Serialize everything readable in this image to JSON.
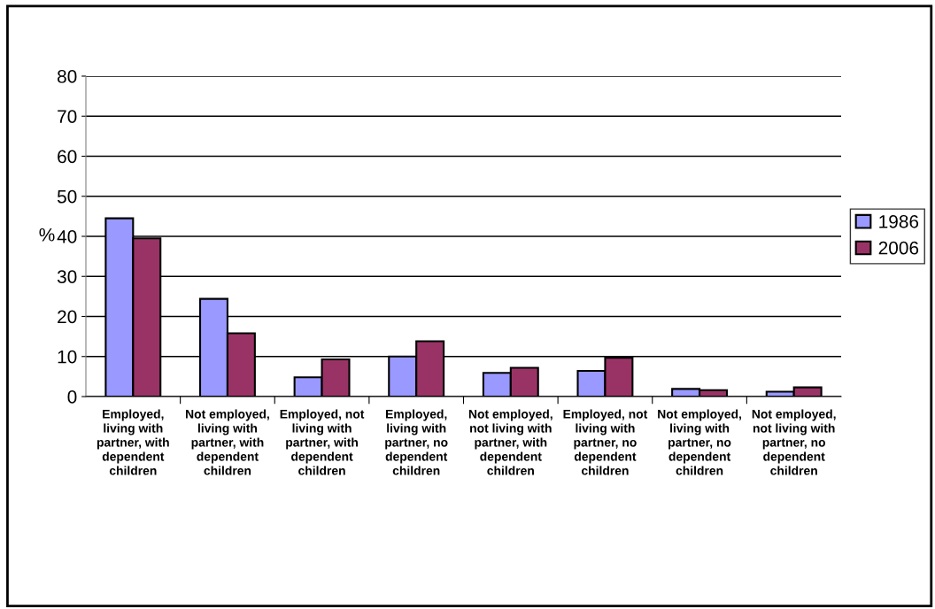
{
  "chart_data": {
    "type": "bar",
    "ylabel": "%",
    "categories": [
      "Employed, living with partner, with dependent children",
      "Not employed, living with partner, with dependent children",
      "Employed, not living with partner, with dependent children",
      "Employed, living with partner, no dependent children",
      "Not employed, not living with partner, with dependent children",
      "Employed, not living with partner, no dependent children",
      "Not employed, living with partner, no dependent children",
      "Not employed, not living with partner, no dependent children"
    ],
    "series": [
      {
        "name": "1986",
        "color": "#9999ff",
        "values": [
          44.5,
          24.4,
          4.8,
          10.0,
          5.9,
          6.4,
          1.9,
          1.2
        ]
      },
      {
        "name": "2006",
        "color": "#993366",
        "values": [
          39.5,
          15.8,
          9.3,
          13.8,
          7.2,
          9.7,
          1.6,
          2.3
        ]
      }
    ],
    "ylim": [
      0,
      80
    ],
    "yticks": [
      0,
      10,
      20,
      30,
      40,
      50,
      60,
      70,
      80
    ],
    "grid": "y",
    "legend": "right"
  }
}
